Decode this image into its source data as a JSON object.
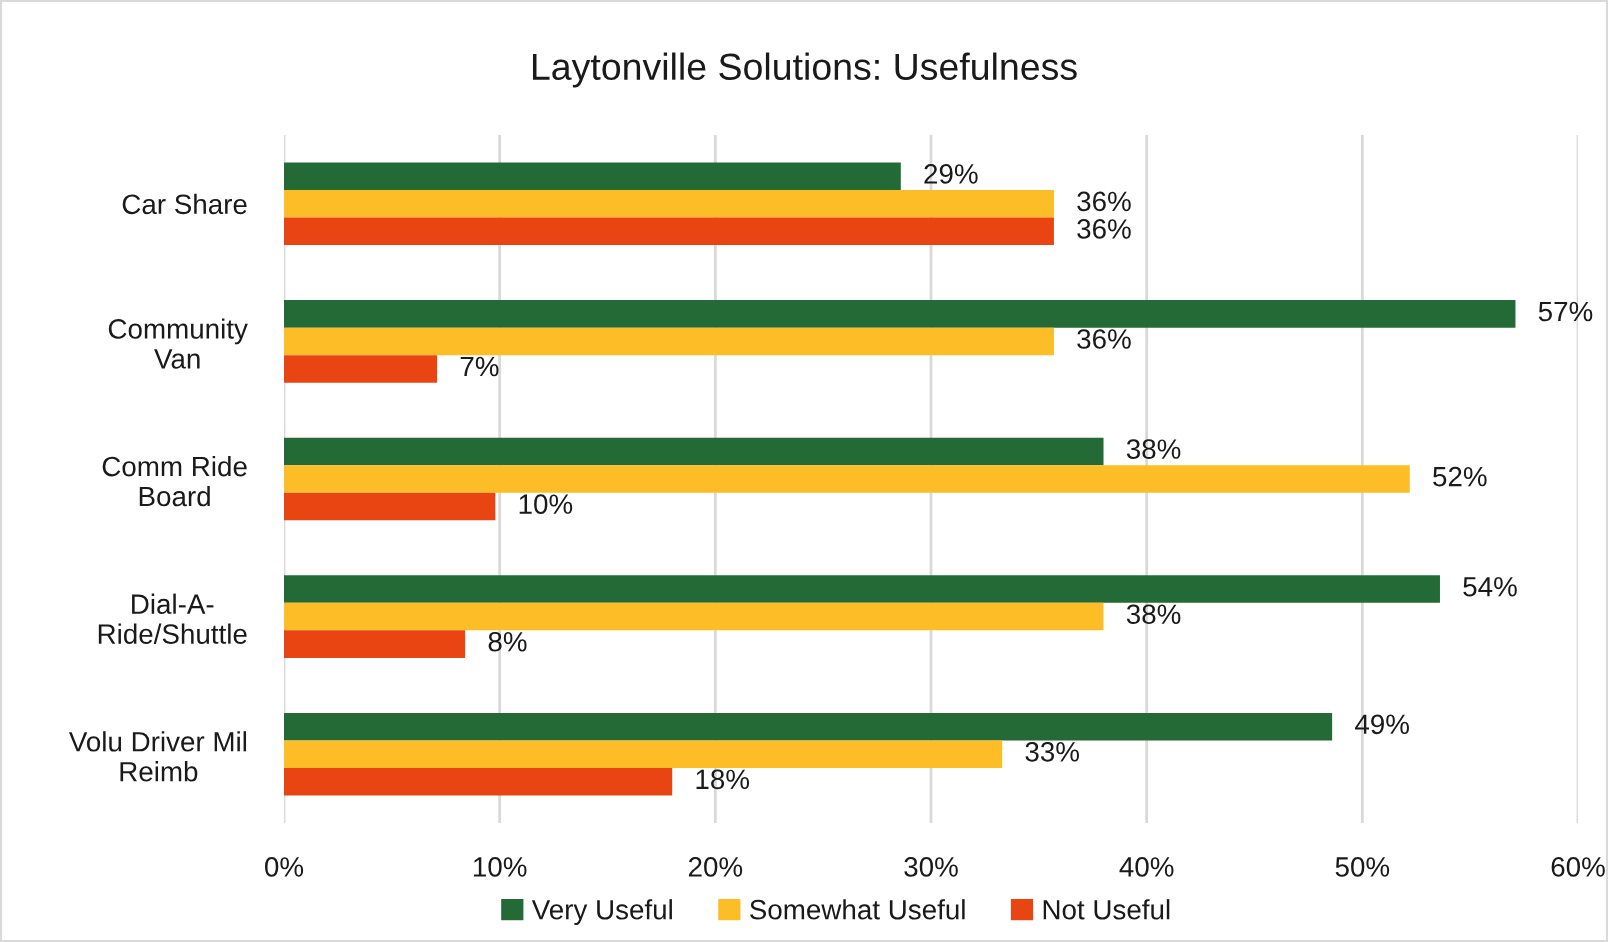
{
  "chart_data": {
    "type": "bar",
    "orientation": "horizontal",
    "title": "Laytonville Solutions: Usefulness",
    "categories": [
      "Car Share",
      "Community\nVan",
      "Comm Ride\nBoard",
      "Dial-A-\nRide/Shuttle",
      "Volu Driver Mil\nReimb"
    ],
    "series": [
      {
        "name": "Very Useful",
        "color": "#246a36",
        "values": [
          28.6,
          57.1,
          38.0,
          53.6,
          48.6
        ],
        "value_labels": [
          "29%",
          "57%",
          "38%",
          "54%",
          "49%"
        ]
      },
      {
        "name": "Somewhat Useful",
        "color": "#fdbd26",
        "values": [
          35.7,
          35.7,
          52.2,
          38.0,
          33.3
        ],
        "value_labels": [
          "36%",
          "36%",
          "52%",
          "38%",
          "33%"
        ]
      },
      {
        "name": "Not Useful",
        "color": "#e84513",
        "values": [
          35.7,
          7.1,
          9.8,
          8.4,
          18.0
        ],
        "value_labels": [
          "36%",
          "7%",
          "10%",
          "8%",
          "18%"
        ]
      }
    ],
    "xlim": [
      0,
      60
    ],
    "xticks": [
      {
        "value": 0,
        "label": "0%"
      },
      {
        "value": 10,
        "label": "10%"
      },
      {
        "value": 20,
        "label": "20%"
      },
      {
        "value": 30,
        "label": "30%"
      },
      {
        "value": 40,
        "label": "40%"
      },
      {
        "value": 50,
        "label": "50%"
      },
      {
        "value": 60,
        "label": "60%"
      }
    ],
    "grid": "x",
    "legend": "bottom"
  }
}
